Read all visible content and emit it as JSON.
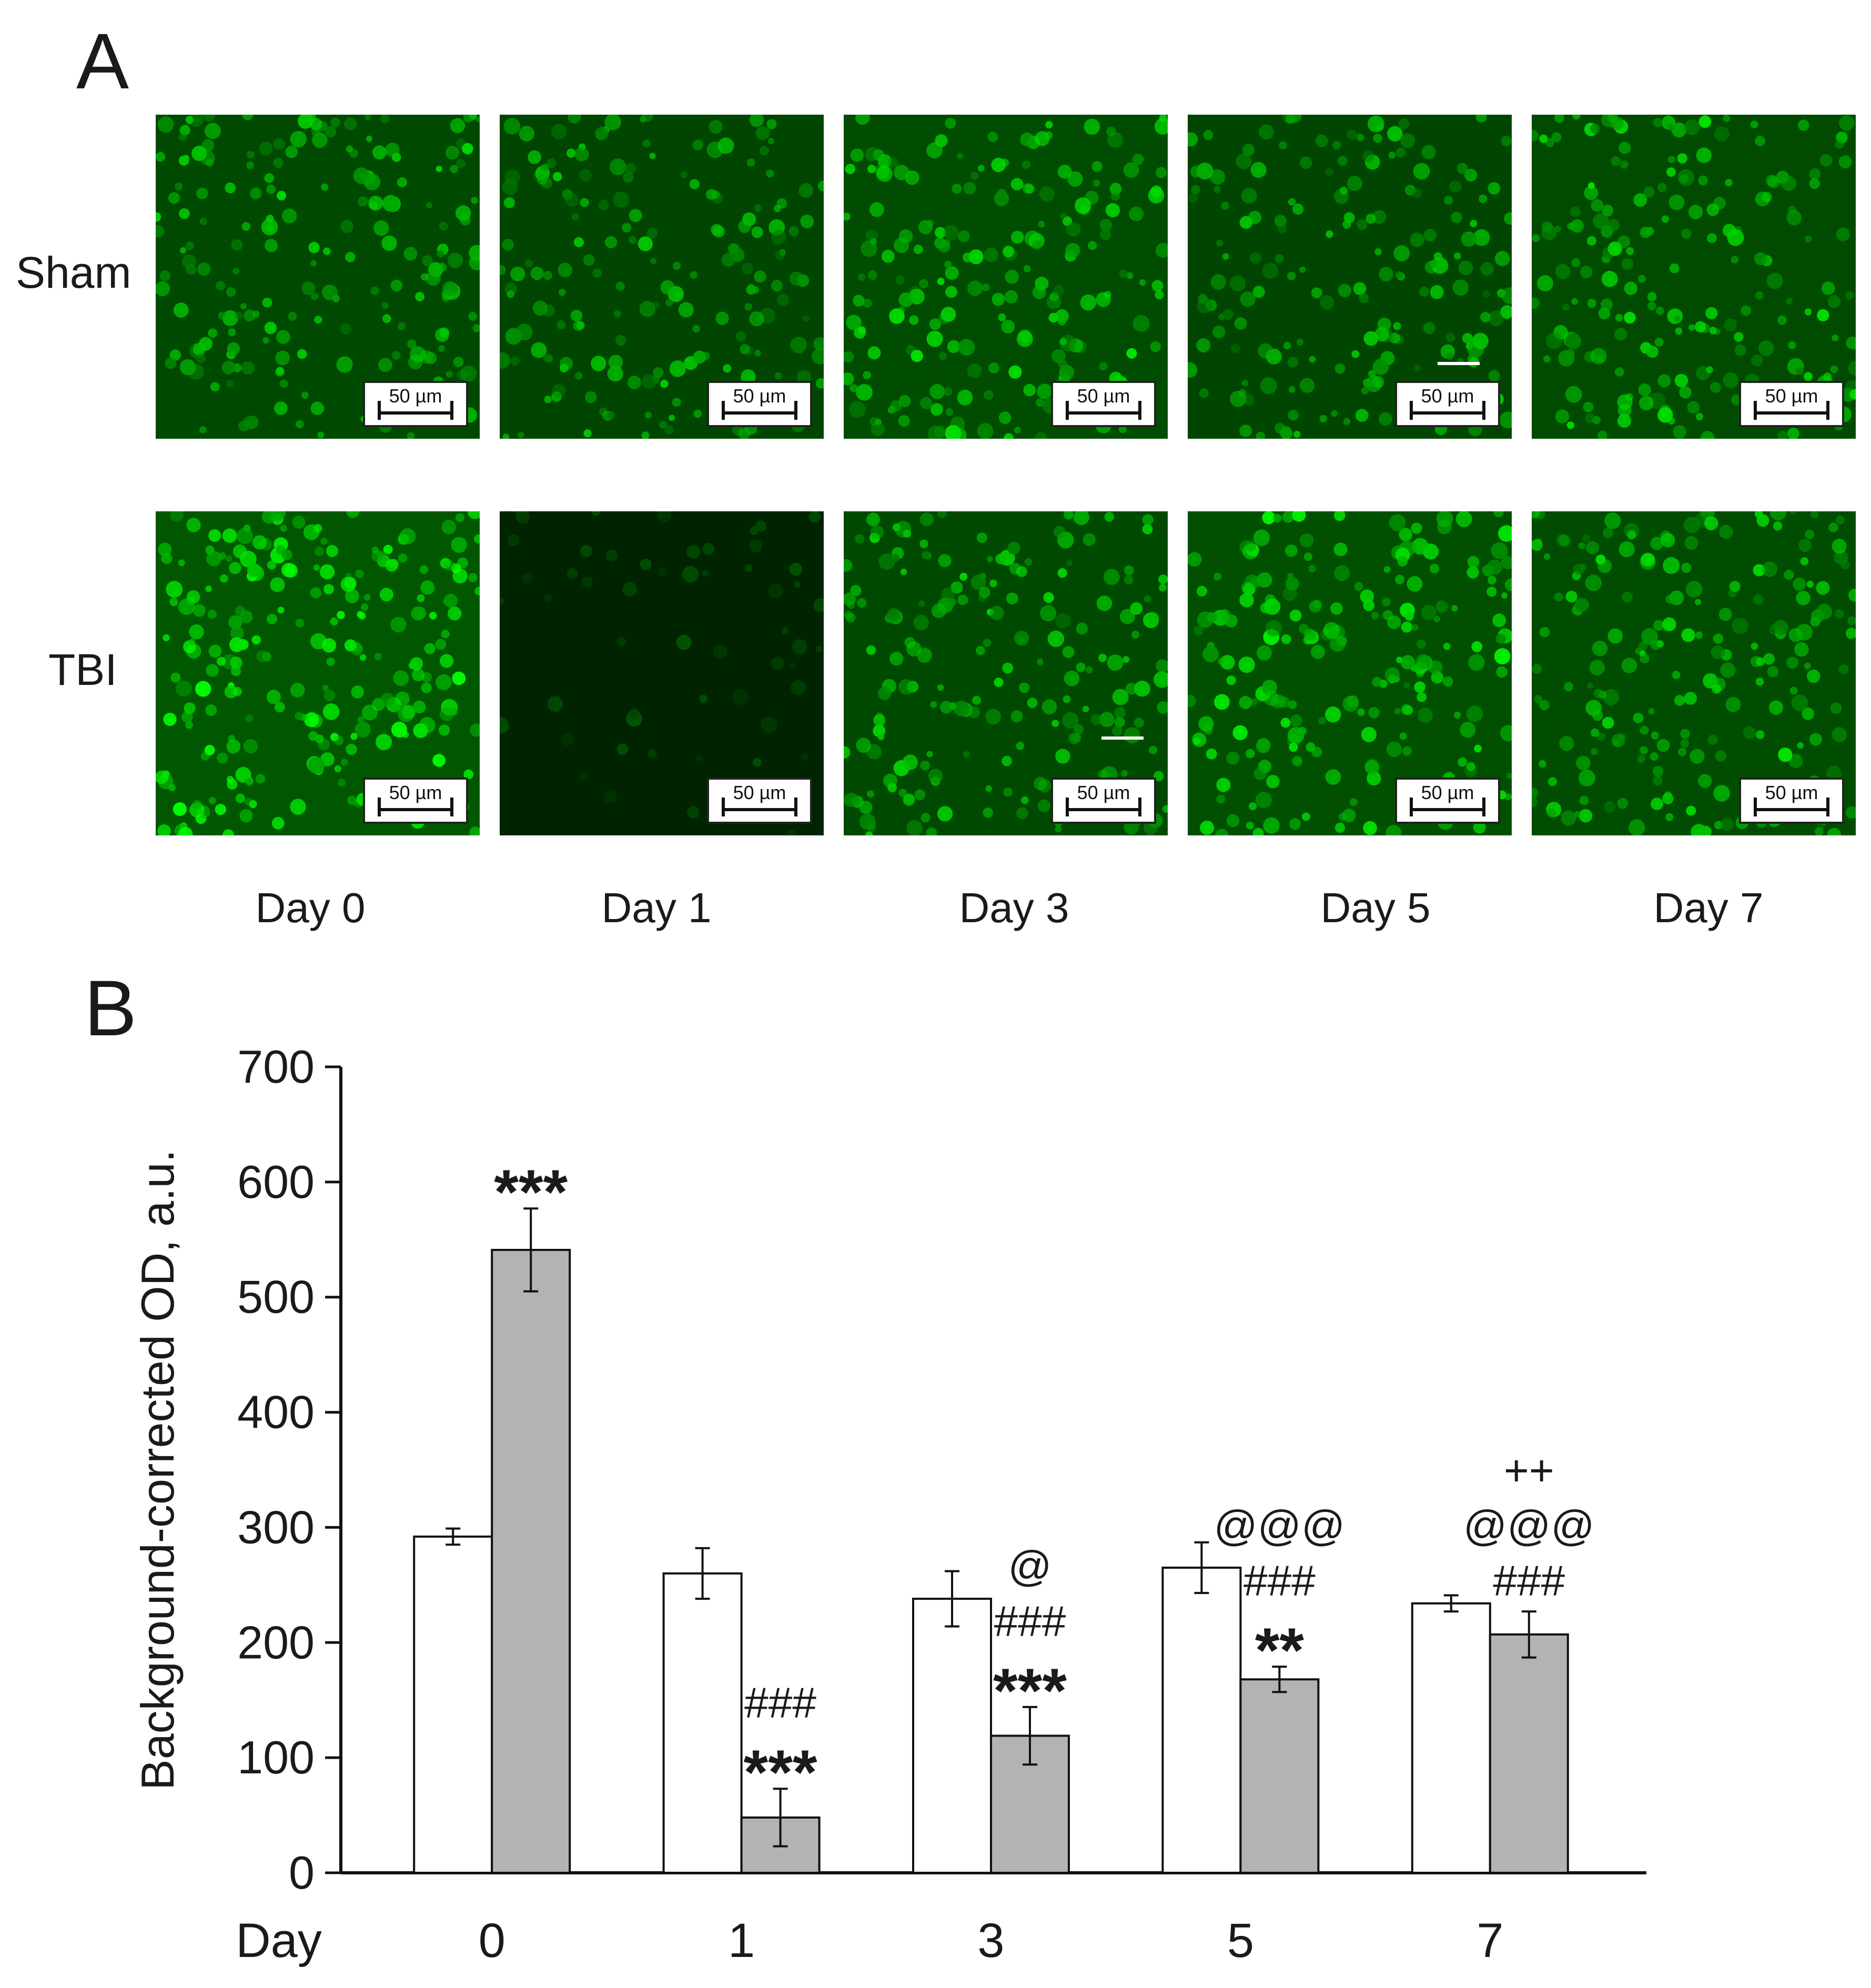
{
  "panel_a": {
    "letter": "A",
    "row_labels": [
      "Sham",
      "TBI"
    ],
    "day_labels": [
      "Day 0",
      "Day 1",
      "Day 3",
      "Day 5",
      "Day 7"
    ],
    "scale_bar_label": "50 µm",
    "image_color": "#00c800"
  },
  "panel_b": {
    "letter": "B"
  },
  "chart_data": {
    "type": "bar",
    "title": "",
    "xlabel": "Day",
    "ylabel": "Background-corrected OD, a.u.",
    "categories": [
      "0",
      "1",
      "3",
      "5",
      "7"
    ],
    "ylim": [
      0,
      700
    ],
    "yticks": [
      0,
      100,
      200,
      300,
      400,
      500,
      600,
      700
    ],
    "grid": false,
    "series": [
      {
        "values": [
          292,
          260,
          238,
          265,
          234
        ],
        "errors": [
          7,
          22,
          24,
          22,
          7
        ],
        "color": "#ffffff"
      },
      {
        "values": [
          541,
          48,
          119,
          168,
          207
        ],
        "errors": [
          36,
          25,
          25,
          11,
          20
        ],
        "color": "#b3b3b3"
      }
    ],
    "annotations": [
      {
        "category": "0",
        "lines": [
          "***"
        ]
      },
      {
        "category": "1",
        "lines": [
          "###",
          "***"
        ]
      },
      {
        "category": "3",
        "lines": [
          "@",
          "###",
          "***"
        ]
      },
      {
        "category": "5",
        "lines": [
          "@@@",
          "###",
          "**"
        ]
      },
      {
        "category": "7",
        "lines": [
          "++",
          "@@@",
          "###"
        ]
      }
    ]
  }
}
